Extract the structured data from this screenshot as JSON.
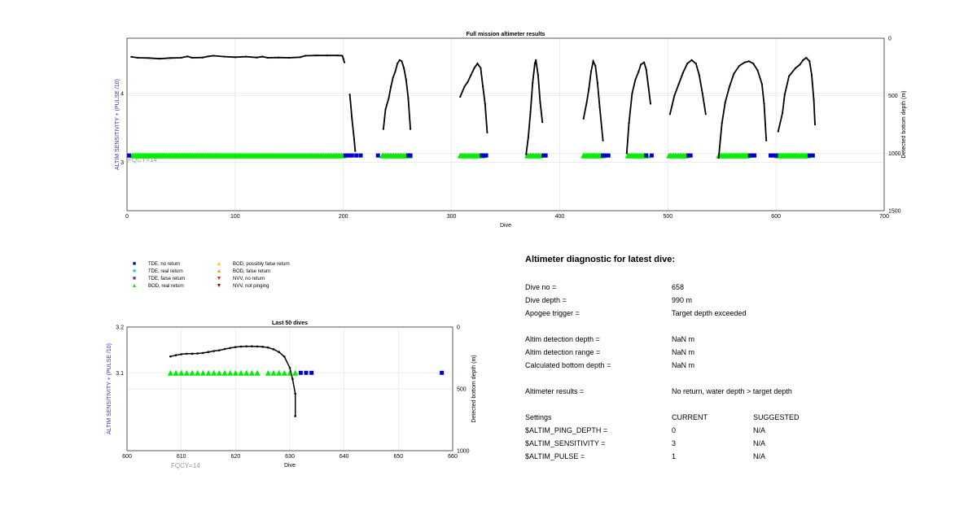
{
  "colors": {
    "tde_no_return": "#0000cc",
    "tde_real_return": "#33ccff",
    "tde_false_return": "#6633cc",
    "bod_real_return": "#00ee00",
    "bod_possibly_false_return": "#ffcc00",
    "bod_false_return": "#ff9900",
    "nvv_no_return": "#dd3300",
    "nvv_not_pinging": "#7a1a1a",
    "altimeter_line": "#000000",
    "left_axis_label": "#3333cc",
    "fqcy_label": "#999999"
  },
  "chart_data": [
    {
      "type": "line",
      "title": "Full mission altimeter results",
      "xlabel": "Dive",
      "ylabel_left": "ALTIM SENSITIVITY + (PULSE /10)",
      "ylabel_right": "Detected bottom depth (m)",
      "xlim": [
        0,
        700
      ],
      "ylim_left": [
        2.3,
        4.8
      ],
      "ylim_right": [
        0,
        1500
      ],
      "right_axis_reversed": true,
      "grid": true,
      "x_ticks": [
        "0",
        "100",
        "200",
        "300",
        "400",
        "500",
        "600",
        "700"
      ],
      "y_left_ticks": [
        "3",
        "4"
      ],
      "y_right_ticks": [
        "0",
        "500",
        "1000",
        "1500"
      ],
      "annotation": "FQCY=14",
      "series": [
        {
          "points": [
            [
              4,
              162
            ],
            [
              10,
              170
            ],
            [
              20,
              172
            ],
            [
              30,
              178
            ],
            [
              40,
              172
            ],
            [
              50,
              170
            ],
            [
              56,
              158
            ],
            [
              60,
              170
            ],
            [
              70,
              168
            ],
            [
              75,
              158
            ],
            [
              80,
              152
            ],
            [
              90,
              160
            ],
            [
              100,
              165
            ],
            [
              110,
              160
            ],
            [
              120,
              168
            ],
            [
              125,
              160
            ],
            [
              130,
              170
            ],
            [
              140,
              168
            ],
            [
              150,
              170
            ],
            [
              160,
              165
            ],
            [
              165,
              152
            ],
            [
              175,
              150
            ],
            [
              185,
              150
            ],
            [
              195,
              150
            ],
            [
              199,
              152
            ],
            [
              200,
              178
            ],
            [
              201,
              210
            ]
          ]
        },
        {
          "points": [
            [
              206,
              490
            ],
            [
              208,
              700
            ],
            [
              210,
              880
            ],
            [
              211,
              980
            ]
          ]
        },
        {
          "points": [
            [
              237,
              790
            ],
            [
              239,
              620
            ],
            [
              242,
              520
            ],
            [
              244,
              420
            ],
            [
              246,
              340
            ],
            [
              248,
              290
            ],
            [
              250,
              220
            ],
            [
              252,
              190
            ],
            [
              254,
              200
            ],
            [
              256,
              260
            ],
            [
              258,
              360
            ],
            [
              260,
              520
            ],
            [
              262,
              790
            ]
          ]
        },
        {
          "points": [
            [
              308,
              510
            ],
            [
              312,
              420
            ],
            [
              315,
              380
            ],
            [
              318,
              320
            ],
            [
              321,
              260
            ],
            [
              324,
              220
            ],
            [
              327,
              260
            ],
            [
              329,
              420
            ],
            [
              331,
              570
            ],
            [
              333,
              820
            ]
          ]
        },
        {
          "points": [
            [
              369,
              1010
            ],
            [
              371,
              860
            ],
            [
              373,
              640
            ],
            [
              375,
              390
            ],
            [
              377,
              220
            ],
            [
              378,
              190
            ],
            [
              380,
              320
            ],
            [
              382,
              560
            ],
            [
              384,
              730
            ]
          ]
        },
        {
          "points": [
            [
              422,
              700
            ],
            [
              425,
              560
            ],
            [
              427,
              440
            ],
            [
              429,
              290
            ],
            [
              431,
              200
            ],
            [
              433,
              240
            ],
            [
              435,
              390
            ],
            [
              437,
              600
            ],
            [
              440,
              890
            ]
          ]
        },
        {
          "points": [
            [
              462,
              1000
            ],
            [
              464,
              740
            ],
            [
              467,
              480
            ],
            [
              470,
              360
            ],
            [
              473,
              290
            ],
            [
              475,
              230
            ],
            [
              478,
              210
            ],
            [
              480,
              270
            ],
            [
              482,
              420
            ],
            [
              484,
              570
            ]
          ]
        },
        {
          "points": [
            [
              502,
              660
            ],
            [
              506,
              500
            ],
            [
              510,
              400
            ],
            [
              514,
              300
            ],
            [
              518,
              220
            ],
            [
              522,
              190
            ],
            [
              526,
              220
            ],
            [
              529,
              320
            ],
            [
              532,
              480
            ],
            [
              535,
              660
            ]
          ]
        },
        {
          "points": [
            [
              547,
              1040
            ],
            [
              550,
              740
            ],
            [
              553,
              560
            ],
            [
              557,
              420
            ],
            [
              561,
              310
            ],
            [
              566,
              240
            ],
            [
              571,
              210
            ],
            [
              575,
              200
            ],
            [
              579,
              220
            ],
            [
              583,
              280
            ],
            [
              587,
              400
            ],
            [
              589,
              570
            ],
            [
              591,
              890
            ]
          ]
        },
        {
          "points": [
            [
              602,
              810
            ],
            [
              606,
              650
            ],
            [
              608,
              490
            ],
            [
              612,
              330
            ],
            [
              618,
              260
            ],
            [
              622,
              230
            ],
            [
              625,
              190
            ],
            [
              628,
              170
            ],
            [
              631,
              200
            ],
            [
              633,
              320
            ],
            [
              635,
              540
            ],
            [
              636,
              750
            ]
          ]
        }
      ],
      "marker_rows": [
        {
          "category": "BOD, real return",
          "y": 3.1,
          "spans": [
            [
              5,
              200
            ],
            [
              236,
              262
            ],
            [
              308,
              330
            ],
            [
              370,
              383
            ],
            [
              422,
              440
            ],
            [
              463,
              482
            ],
            [
              501,
              518
            ],
            [
              547,
              575
            ],
            [
              601,
              630
            ]
          ]
        },
        {
          "category": "TDE, no return",
          "y": 3.1,
          "points": [
            2,
            202,
            205,
            208,
            212,
            216,
            232,
            260,
            262,
            328,
            330,
            332,
            385,
            387,
            440,
            442,
            445,
            480,
            485,
            519,
            521,
            576,
            578,
            580,
            595,
            597,
            600,
            631,
            634
          ]
        }
      ]
    },
    {
      "type": "line",
      "title": "Last 50 dives",
      "xlabel": "Dive",
      "ylabel_left": "ALTIM SENSITIVITY + (PULSE /10)",
      "ylabel_right": "Detected bottom depth (m)",
      "xlim": [
        600,
        660
      ],
      "ylim_left": [
        2.93,
        3.2
      ],
      "ylim_right": [
        0,
        1000
      ],
      "right_axis_reversed": true,
      "grid": true,
      "x_ticks": [
        "600",
        "610",
        "620",
        "630",
        "640",
        "650",
        "660"
      ],
      "y_left_ticks": [
        "3.1",
        "3.2"
      ],
      "y_right_ticks": [
        "0",
        "500",
        "1000"
      ],
      "annotation": "FQCY=14",
      "series": [
        {
          "points": [
            [
              608,
              238
            ],
            [
              609,
              228
            ],
            [
              610,
              220
            ],
            [
              611,
              216
            ],
            [
              612,
              216
            ],
            [
              613,
              214
            ],
            [
              614,
              210
            ],
            [
              615,
              202
            ],
            [
              616,
              194
            ],
            [
              617,
              188
            ],
            [
              618,
              178
            ],
            [
              619,
              170
            ],
            [
              620,
              162
            ],
            [
              621,
              158
            ],
            [
              622,
              156
            ],
            [
              623,
              156
            ],
            [
              624,
              157
            ],
            [
              625,
              160
            ],
            [
              626,
              166
            ],
            [
              627,
              180
            ],
            [
              628,
              202
            ],
            [
              629,
              240
            ],
            [
              630,
              330
            ],
            [
              630.5,
              420
            ],
            [
              631,
              540
            ],
            [
              631,
              720
            ]
          ]
        }
      ],
      "marker_rows": [
        {
          "category": "BOD, real return",
          "y": 3.1,
          "points": [
            608,
            609,
            610,
            611,
            612,
            613,
            614,
            615,
            616,
            617,
            618,
            619,
            620,
            621,
            622,
            623,
            624,
            626,
            627,
            628,
            629,
            630,
            631
          ]
        },
        {
          "category": "TDE, no return",
          "y": 3.1,
          "points": [
            632,
            633,
            634,
            658
          ]
        }
      ]
    }
  ],
  "legend": [
    {
      "label": "TDE, no return",
      "symbol": "■",
      "color_key": "tde_no_return"
    },
    {
      "label": "TDE, real return",
      "symbol": "■",
      "color_key": "tde_real_return"
    },
    {
      "label": "TDE, false return",
      "symbol": "■",
      "color_key": "tde_false_return"
    },
    {
      "label": "BOD, real return",
      "symbol": "▲",
      "color_key": "bod_real_return"
    },
    {
      "label": "BOD, possibly false return",
      "symbol": "▲",
      "color_key": "bod_possibly_false_return"
    },
    {
      "label": "BOD, false return",
      "symbol": "▲",
      "color_key": "bod_false_return"
    },
    {
      "label": "NVV, no return",
      "symbol": "▼",
      "color_key": "nvv_no_return"
    },
    {
      "label": "NVV, not pinging",
      "symbol": "▼",
      "color_key": "nvv_not_pinging"
    }
  ],
  "diagnostic": {
    "title": "Altimeter diagnostic for latest dive:",
    "rows": [
      {
        "label": "Dive no =",
        "value": "658",
        "suggested": ""
      },
      {
        "label": "Dive depth =",
        "value": "990 m",
        "suggested": ""
      },
      {
        "label": "Apogee trigger =",
        "value": "Target depth exceeded",
        "suggested": ""
      },
      {
        "label": "Altim detection depth =",
        "value": "NaN m",
        "suggested": ""
      },
      {
        "label": "Altim detection range =",
        "value": "NaN m",
        "suggested": ""
      },
      {
        "label": "Calculated bottom depth =",
        "value": "NaN m",
        "suggested": ""
      },
      {
        "label": "Altimeter results =",
        "value": "No return, water depth > target depth",
        "suggested": ""
      },
      {
        "label": "Settings",
        "value": "CURRENT",
        "suggested": "SUGGESTED"
      },
      {
        "label": "$ALTIM_PING_DEPTH =",
        "value": "0",
        "suggested": "N/A"
      },
      {
        "label": "$ALTIM_SENSITIVITY =",
        "value": "3",
        "suggested": "N/A"
      },
      {
        "label": "$ALTIM_PULSE =",
        "value": "1",
        "suggested": "N/A"
      }
    ]
  }
}
